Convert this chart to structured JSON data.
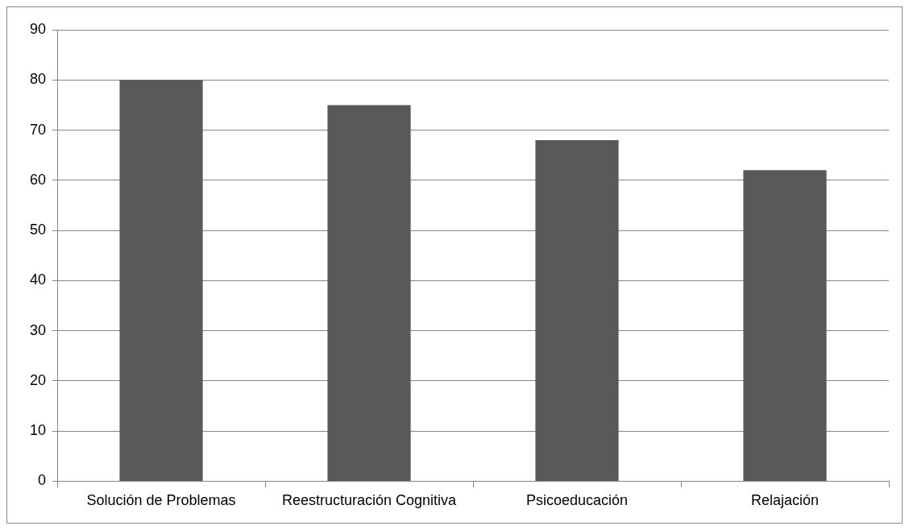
{
  "chart_data": {
    "type": "bar",
    "categories": [
      "Solución de Problemas",
      "Reestructuración Cognitiva",
      "Psicoeducación",
      "Relajación"
    ],
    "values": [
      80,
      75,
      68,
      62
    ],
    "color": "#595959",
    "ylim": [
      0,
      90
    ],
    "yticks": [
      0,
      10,
      20,
      30,
      40,
      50,
      60,
      70,
      80,
      90
    ],
    "grid": "y",
    "legend": false
  }
}
